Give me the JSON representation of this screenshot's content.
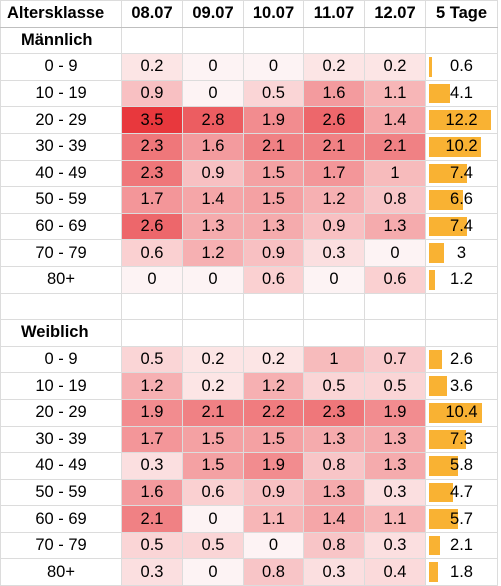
{
  "header": [
    "Altersklasse",
    "08.07",
    "09.07",
    "10.07",
    "11.07",
    "12.07",
    "5 Tage"
  ],
  "total_max": 12.2,
  "colors": {
    "bar": "#f9b233",
    "heat_low": "#ffffff",
    "heat_high": "#e8383d"
  },
  "sections": [
    {
      "title": "Männlich",
      "rows": [
        {
          "age": "0 - 9",
          "values": [
            "0.2",
            "0",
            "0",
            "0.2",
            "0.2"
          ],
          "total": "0.6"
        },
        {
          "age": "10 - 19",
          "values": [
            "0.9",
            "0",
            "0.5",
            "1.6",
            "1.1"
          ],
          "total": "4.1"
        },
        {
          "age": "20 - 29",
          "values": [
            "3.5",
            "2.8",
            "1.9",
            "2.6",
            "1.4"
          ],
          "total": "12.2"
        },
        {
          "age": "30 - 39",
          "values": [
            "2.3",
            "1.6",
            "2.1",
            "2.1",
            "2.1"
          ],
          "total": "10.2"
        },
        {
          "age": "40 - 49",
          "values": [
            "2.3",
            "0.9",
            "1.5",
            "1.7",
            "1"
          ],
          "total": "7.4"
        },
        {
          "age": "50 - 59",
          "values": [
            "1.7",
            "1.4",
            "1.5",
            "1.2",
            "0.8"
          ],
          "total": "6.6"
        },
        {
          "age": "60 - 69",
          "values": [
            "2.6",
            "1.3",
            "1.3",
            "0.9",
            "1.3"
          ],
          "total": "7.4"
        },
        {
          "age": "70 - 79",
          "values": [
            "0.6",
            "1.2",
            "0.9",
            "0.3",
            "0"
          ],
          "total": "3"
        },
        {
          "age": "80+",
          "values": [
            "0",
            "0",
            "0.6",
            "0",
            "0.6"
          ],
          "total": "1.2"
        }
      ]
    },
    {
      "title": "Weiblich",
      "rows": [
        {
          "age": "0 - 9",
          "values": [
            "0.5",
            "0.2",
            "0.2",
            "1",
            "0.7"
          ],
          "total": "2.6"
        },
        {
          "age": "10 - 19",
          "values": [
            "1.2",
            "0.2",
            "1.2",
            "0.5",
            "0.5"
          ],
          "total": "3.6"
        },
        {
          "age": "20 - 29",
          "values": [
            "1.9",
            "2.1",
            "2.2",
            "2.3",
            "1.9"
          ],
          "total": "10.4"
        },
        {
          "age": "30 - 39",
          "values": [
            "1.7",
            "1.5",
            "1.5",
            "1.3",
            "1.3"
          ],
          "total": "7.3"
        },
        {
          "age": "40 - 49",
          "values": [
            "0.3",
            "1.5",
            "1.9",
            "0.8",
            "1.3"
          ],
          "total": "5.8"
        },
        {
          "age": "50 - 59",
          "values": [
            "1.6",
            "0.6",
            "0.9",
            "1.3",
            "0.3"
          ],
          "total": "4.7"
        },
        {
          "age": "60 - 69",
          "values": [
            "2.1",
            "0",
            "1.1",
            "1.4",
            "1.1"
          ],
          "total": "5.7"
        },
        {
          "age": "70 - 79",
          "values": [
            "0.5",
            "0.5",
            "0",
            "0.8",
            "0.3"
          ],
          "total": "2.1"
        },
        {
          "age": "80+",
          "values": [
            "0.3",
            "0",
            "0.8",
            "0.3",
            "0.4"
          ],
          "total": "1.8"
        }
      ]
    }
  ]
}
